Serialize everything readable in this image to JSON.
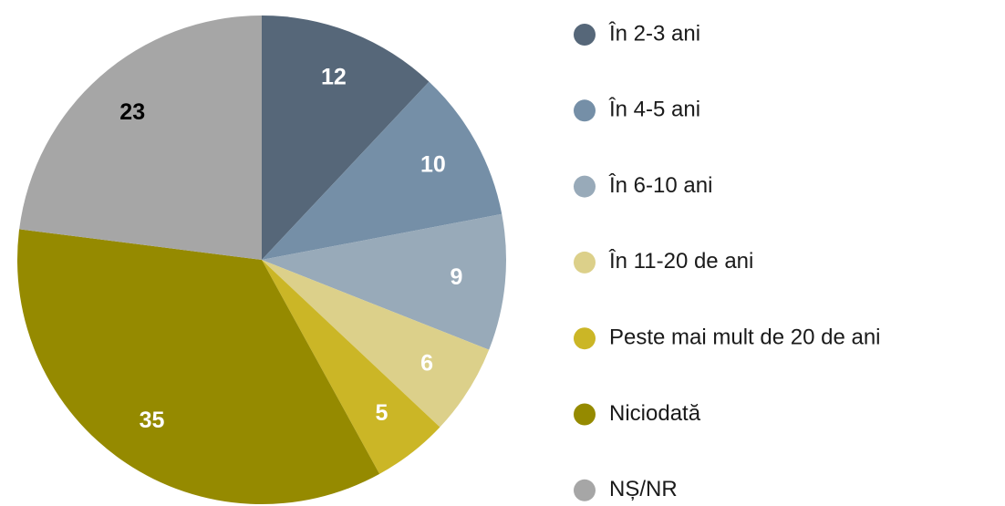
{
  "chart_data": {
    "type": "pie",
    "categories": [
      "În 2-3 ani",
      "În 4-5 ani",
      "În 6-10 ani",
      "În 11-20 de ani",
      "Peste mai mult de 20 de ani",
      "Niciodată",
      "NȘ/NR"
    ],
    "values": [
      12,
      10,
      9,
      6,
      5,
      35,
      23
    ],
    "colors": [
      "#566779",
      "#758fa7",
      "#98aab9",
      "#dcd08a",
      "#cbb626",
      "#958a00",
      "#a6a6a6"
    ],
    "label_colors": [
      "#ffffff",
      "#ffffff",
      "#ffffff",
      "#ffffff",
      "#ffffff",
      "#ffffff",
      "#000000"
    ],
    "legend": "right"
  }
}
